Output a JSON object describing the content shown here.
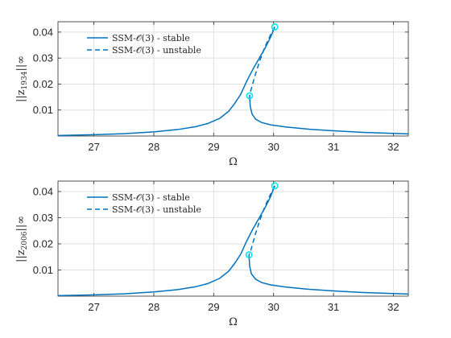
{
  "chart_data": [
    {
      "type": "line",
      "xlabel": "Ω",
      "ylabel": "||z1934||∞",
      "ylabel_base": "||z",
      "ylabel_sub": "1934",
      "ylabel_tail": "||∞",
      "xlim": [
        26.4,
        32.25
      ],
      "ylim": [
        0,
        0.044
      ],
      "xticks": [
        "27",
        "28",
        "29",
        "30",
        "31",
        "32"
      ],
      "yticks": [
        "0.01",
        "0.02",
        "0.03",
        "0.04"
      ],
      "grid": true,
      "legend_position": "top-left",
      "series": [
        {
          "name": "SSM-𝒪(3) - stable",
          "style": "solid",
          "color": "#0072bd",
          "x": [
            26.4,
            27.0,
            27.5,
            28.0,
            28.4,
            28.7,
            28.9,
            29.1,
            29.25,
            29.35,
            29.45,
            29.55,
            29.65,
            29.75,
            29.85,
            29.95,
            30.02
          ],
          "y": [
            0.0002,
            0.0005,
            0.0009,
            0.0016,
            0.0025,
            0.0036,
            0.0048,
            0.0068,
            0.0095,
            0.0125,
            0.016,
            0.021,
            0.0255,
            0.0295,
            0.0335,
            0.038,
            0.042
          ]
        },
        {
          "name": "SSM-𝒪(3) - unstable",
          "style": "dashed",
          "color": "#0072bd",
          "x": [
            30.02,
            29.95,
            29.85,
            29.77,
            29.7,
            29.65,
            29.62,
            29.6
          ],
          "y": [
            0.042,
            0.039,
            0.034,
            0.029,
            0.024,
            0.02,
            0.0175,
            0.0155
          ]
        },
        {
          "name": "",
          "style": "solid",
          "color": "#0072bd",
          "x": [
            29.6,
            29.61,
            29.64,
            29.7,
            29.8,
            29.95,
            30.2,
            30.6,
            31.0,
            31.5,
            32.0,
            32.25
          ],
          "y": [
            0.0155,
            0.0115,
            0.0085,
            0.0065,
            0.0052,
            0.0043,
            0.0035,
            0.0026,
            0.002,
            0.0014,
            0.001,
            0.0008
          ]
        }
      ],
      "markers": [
        {
          "x": 30.02,
          "y": 0.042,
          "color": "#00e5ee"
        },
        {
          "x": 29.6,
          "y": 0.0155,
          "color": "#00e5ee"
        }
      ]
    },
    {
      "type": "line",
      "xlabel": "Ω",
      "ylabel": "||z2006||∞",
      "ylabel_base": "||z",
      "ylabel_sub": "2006",
      "ylabel_tail": "||∞",
      "xlim": [
        26.4,
        32.25
      ],
      "ylim": [
        0,
        0.044
      ],
      "xticks": [
        "27",
        "28",
        "29",
        "30",
        "31",
        "32"
      ],
      "yticks": [
        "0.01",
        "0.02",
        "0.03",
        "0.04"
      ],
      "grid": true,
      "legend_position": "top-left",
      "series": [
        {
          "name": "SSM-𝒪(3) - stable",
          "style": "solid",
          "color": "#0072bd",
          "x": [
            26.4,
            27.0,
            27.5,
            28.0,
            28.4,
            28.7,
            28.9,
            29.1,
            29.25,
            29.35,
            29.45,
            29.55,
            29.65,
            29.75,
            29.85,
            29.95,
            30.02
          ],
          "y": [
            0.0002,
            0.0005,
            0.0009,
            0.0016,
            0.0025,
            0.0036,
            0.0048,
            0.0068,
            0.0095,
            0.0125,
            0.016,
            0.021,
            0.0255,
            0.0295,
            0.0335,
            0.038,
            0.0422
          ]
        },
        {
          "name": "SSM-𝒪(3) - unstable",
          "style": "dashed",
          "color": "#0072bd",
          "x": [
            30.02,
            29.95,
            29.85,
            29.77,
            29.7,
            29.65,
            29.62,
            29.59
          ],
          "y": [
            0.0422,
            0.039,
            0.034,
            0.029,
            0.024,
            0.02,
            0.0175,
            0.0158
          ]
        },
        {
          "name": "",
          "style": "solid",
          "color": "#0072bd",
          "x": [
            29.59,
            29.6,
            29.63,
            29.7,
            29.8,
            29.95,
            30.2,
            30.6,
            31.0,
            31.5,
            32.0,
            32.25
          ],
          "y": [
            0.0158,
            0.0115,
            0.0085,
            0.0065,
            0.0052,
            0.0043,
            0.0035,
            0.0026,
            0.002,
            0.0014,
            0.001,
            0.0008
          ]
        }
      ],
      "markers": [
        {
          "x": 30.02,
          "y": 0.0422,
          "color": "#00e5ee"
        },
        {
          "x": 29.59,
          "y": 0.0158,
          "color": "#00e5ee"
        }
      ]
    }
  ]
}
